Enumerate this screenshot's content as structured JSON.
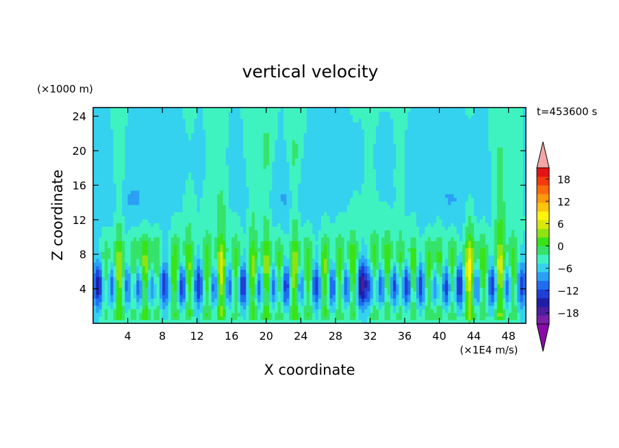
{
  "chart_data": {
    "type": "heatmap",
    "title": "vertical velocity",
    "time_label": "t=453600 s",
    "xlabel": "X coordinate",
    "ylabel": "Z coordinate",
    "x_unit": "(×1E4 m/s)",
    "y_unit": "(×1000 m)",
    "xlim": [
      0,
      50
    ],
    "ylim": [
      0,
      25
    ],
    "x_ticks": [
      4,
      8,
      12,
      16,
      20,
      24,
      28,
      32,
      36,
      40,
      44,
      48
    ],
    "y_ticks": [
      4,
      8,
      12,
      16,
      20,
      24
    ],
    "colorbar": {
      "range": [
        -21,
        21
      ],
      "step": 3,
      "tick_values": [
        18,
        12,
        6,
        0,
        -6,
        -12,
        -18
      ],
      "colors": [
        "#7a1fa8",
        "#4b1f9e",
        "#1e1ea6",
        "#1f3fd6",
        "#1f6ef0",
        "#2aa0f5",
        "#34d2ee",
        "#3ff3c0",
        "#36e36a",
        "#39e317",
        "#8fe30f",
        "#d8e808",
        "#fff40a",
        "#ffc50a",
        "#ff9a0a",
        "#ff6a0a",
        "#f43a0a",
        "#e41414"
      ],
      "under_color": "#8a0aa8",
      "over_color": "#f4a6a6"
    },
    "grid_size": {
      "nx": 150,
      "nz": 60
    },
    "updraft_columns": [
      {
        "x": 1.5,
        "amp": 7,
        "top": 8
      },
      {
        "x": 3.0,
        "amp": 14,
        "top": 18
      },
      {
        "x": 4.7,
        "amp": 9,
        "top": 10
      },
      {
        "x": 6.0,
        "amp": 13,
        "top": 12
      },
      {
        "x": 7.3,
        "amp": 9,
        "top": 9
      },
      {
        "x": 9.5,
        "amp": 10,
        "top": 12
      },
      {
        "x": 11.0,
        "amp": 11,
        "top": 14
      },
      {
        "x": 13.2,
        "amp": 10,
        "top": 10
      },
      {
        "x": 14.8,
        "amp": 16,
        "top": 15
      },
      {
        "x": 16.5,
        "amp": 9,
        "top": 10
      },
      {
        "x": 18.5,
        "amp": 12,
        "top": 20
      },
      {
        "x": 20.0,
        "amp": 13,
        "top": 22
      },
      {
        "x": 21.5,
        "amp": 9,
        "top": 12
      },
      {
        "x": 23.3,
        "amp": 14,
        "top": 21
      },
      {
        "x": 24.8,
        "amp": 10,
        "top": 12
      },
      {
        "x": 26.8,
        "amp": 11,
        "top": 12
      },
      {
        "x": 28.5,
        "amp": 9,
        "top": 10
      },
      {
        "x": 30.0,
        "amp": 11,
        "top": 11
      },
      {
        "x": 32.5,
        "amp": 10,
        "top": 12
      },
      {
        "x": 34.0,
        "amp": 11,
        "top": 12
      },
      {
        "x": 35.5,
        "amp": 9,
        "top": 17
      },
      {
        "x": 37.0,
        "amp": 10,
        "top": 13
      },
      {
        "x": 38.8,
        "amp": 9,
        "top": 11
      },
      {
        "x": 40.0,
        "amp": 10,
        "top": 14
      },
      {
        "x": 41.5,
        "amp": 10,
        "top": 10
      },
      {
        "x": 43.5,
        "amp": 18,
        "top": 14
      },
      {
        "x": 45.0,
        "amp": 10,
        "top": 10
      },
      {
        "x": 47.0,
        "amp": 16,
        "top": 20
      },
      {
        "x": 48.5,
        "amp": 9,
        "top": 12
      }
    ],
    "downdraft_columns": [
      {
        "x": 0.6,
        "amp": 15
      },
      {
        "x": 2.2,
        "amp": 12
      },
      {
        "x": 4.0,
        "amp": 11
      },
      {
        "x": 5.3,
        "amp": 14
      },
      {
        "x": 6.8,
        "amp": 12
      },
      {
        "x": 8.2,
        "amp": 13
      },
      {
        "x": 10.3,
        "amp": 16
      },
      {
        "x": 12.2,
        "amp": 13
      },
      {
        "x": 14.0,
        "amp": 12
      },
      {
        "x": 15.7,
        "amp": 11
      },
      {
        "x": 17.3,
        "amp": 14
      },
      {
        "x": 19.2,
        "amp": 13
      },
      {
        "x": 20.8,
        "amp": 12
      },
      {
        "x": 22.3,
        "amp": 14
      },
      {
        "x": 24.0,
        "amp": 11
      },
      {
        "x": 25.8,
        "amp": 13
      },
      {
        "x": 27.6,
        "amp": 12
      },
      {
        "x": 29.3,
        "amp": 13
      },
      {
        "x": 31.0,
        "amp": 17
      },
      {
        "x": 32.0,
        "amp": 12
      },
      {
        "x": 33.3,
        "amp": 13
      },
      {
        "x": 34.8,
        "amp": 14
      },
      {
        "x": 36.2,
        "amp": 16
      },
      {
        "x": 37.8,
        "amp": 13
      },
      {
        "x": 39.5,
        "amp": 12
      },
      {
        "x": 40.8,
        "amp": 15
      },
      {
        "x": 42.3,
        "amp": 15
      },
      {
        "x": 44.3,
        "amp": 13
      },
      {
        "x": 46.2,
        "amp": 14
      },
      {
        "x": 47.8,
        "amp": 12
      },
      {
        "x": 49.5,
        "amp": 11
      }
    ]
  }
}
